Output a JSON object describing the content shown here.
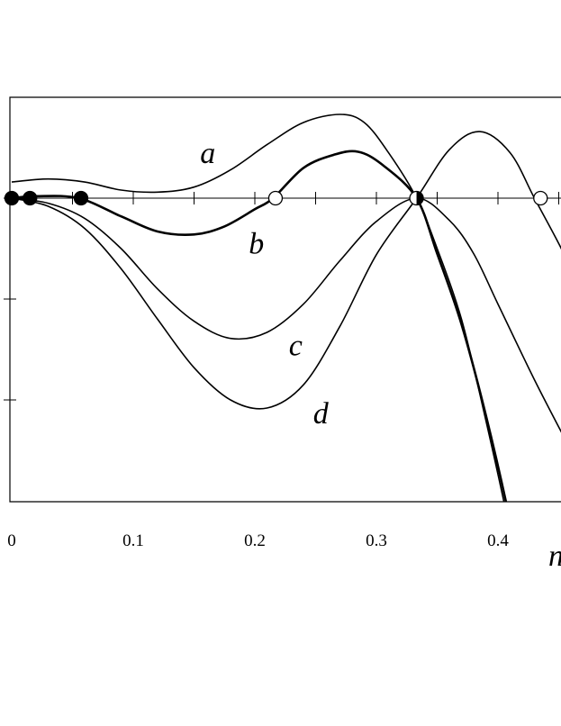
{
  "chart_data": {
    "type": "line",
    "xlabel": "n",
    "ylabel": "",
    "xlim": [
      0,
      0.46
    ],
    "ylim": [
      -3.0,
      1.0
    ],
    "x_ticks": [
      0,
      0.1,
      0.2,
      0.3,
      0.4
    ],
    "x_tick_labels": [
      "0",
      "0.1",
      "0.2",
      "0.3",
      "0.4"
    ],
    "y_ticks": [
      0,
      -1,
      -2
    ],
    "grid": false,
    "series": [
      {
        "name": "a",
        "stroke_width": 1.6,
        "x": [
          0.0,
          0.03,
          0.06,
          0.09,
          0.12,
          0.15,
          0.18,
          0.21,
          0.24,
          0.27,
          0.29,
          0.31,
          0.333,
          0.35,
          0.37,
          0.39,
          0.41,
          0.43
        ],
        "y": [
          0.16,
          0.19,
          0.16,
          0.08,
          0.06,
          0.11,
          0.28,
          0.53,
          0.75,
          0.83,
          0.75,
          0.45,
          0.0,
          -0.5,
          -1.2,
          -2.2,
          -3.3,
          -4.5
        ]
      },
      {
        "name": "b",
        "stroke_width": 2.6,
        "x": [
          0.0,
          0.02,
          0.055,
          0.09,
          0.12,
          0.15,
          0.175,
          0.2,
          0.215,
          0.24,
          0.265,
          0.285,
          0.305,
          0.333,
          0.35,
          0.37,
          0.39,
          0.41,
          0.43
        ],
        "y": [
          0.0,
          0.02,
          0.0,
          -0.18,
          -0.33,
          -0.36,
          -0.28,
          -0.11,
          0.0,
          0.3,
          0.43,
          0.46,
          0.33,
          0.0,
          -0.55,
          -1.25,
          -2.15,
          -3.2,
          -4.4
        ]
      },
      {
        "name": "c",
        "stroke_width": 1.6,
        "x": [
          0.0,
          0.03,
          0.06,
          0.09,
          0.12,
          0.15,
          0.18,
          0.21,
          0.24,
          0.27,
          0.3,
          0.333,
          0.36,
          0.38,
          0.4,
          0.43,
          0.46
        ],
        "y": [
          0.0,
          -0.05,
          -0.2,
          -0.5,
          -0.9,
          -1.22,
          -1.39,
          -1.33,
          -1.05,
          -0.62,
          -0.23,
          0.0,
          -0.22,
          -0.55,
          -1.05,
          -1.8,
          -2.5
        ]
      },
      {
        "name": "d",
        "stroke_width": 1.6,
        "x": [
          0.0,
          0.03,
          0.06,
          0.09,
          0.12,
          0.15,
          0.18,
          0.21,
          0.24,
          0.27,
          0.3,
          0.333,
          0.36,
          0.385,
          0.41,
          0.43,
          0.45,
          0.46
        ],
        "y": [
          0.0,
          -0.08,
          -0.3,
          -0.7,
          -1.2,
          -1.68,
          -2.0,
          -2.08,
          -1.85,
          -1.27,
          -0.56,
          0.0,
          0.48,
          0.66,
          0.45,
          0.0,
          -0.45,
          -0.7
        ]
      }
    ],
    "series_labels": [
      {
        "name": "a",
        "x": 0.155,
        "y": 0.35
      },
      {
        "name": "b",
        "x": 0.195,
        "y": -0.55
      },
      {
        "name": "c",
        "x": 0.228,
        "y": -1.56
      },
      {
        "name": "d",
        "x": 0.248,
        "y": -2.23
      }
    ],
    "markers": [
      {
        "x": 0.0,
        "y": 0.0,
        "style": "filled"
      },
      {
        "x": 0.015,
        "y": 0.0,
        "style": "filled"
      },
      {
        "x": 0.057,
        "y": 0.0,
        "style": "filled"
      },
      {
        "x": 0.217,
        "y": 0.0,
        "style": "open"
      },
      {
        "x": 0.333,
        "y": 0.0,
        "style": "half"
      },
      {
        "x": 0.435,
        "y": 0.0,
        "style": "open"
      }
    ]
  }
}
